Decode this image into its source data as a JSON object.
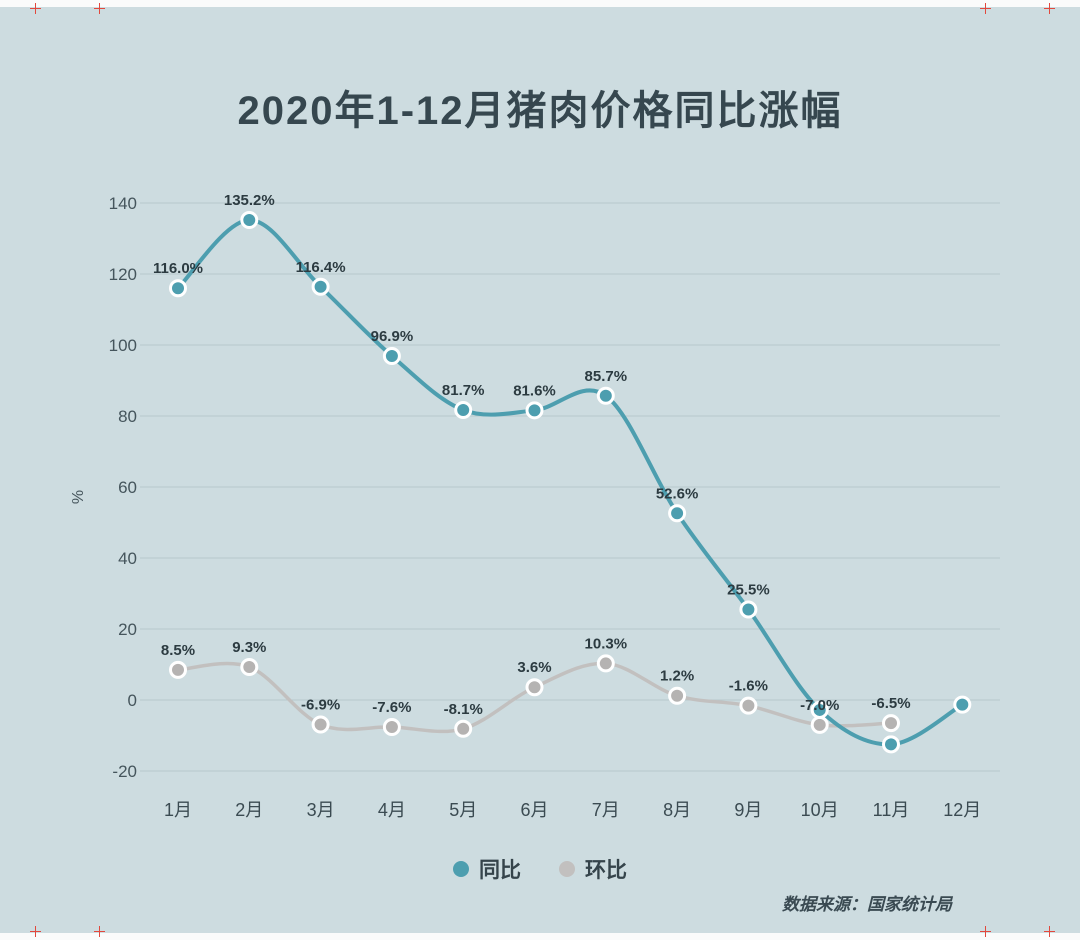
{
  "title": "2020年1-12月猪肉价格同比涨幅",
  "source": "数据来源：国家统计局",
  "legend": [
    {
      "label": "同比",
      "color": "#4d9eaf"
    },
    {
      "label": "环比",
      "color": "#c2c0bf"
    }
  ],
  "colors": {
    "background": "#cddce0",
    "grid": "#b7c8cc",
    "title_text": "#36474f",
    "value_label_text": "#2c3b41",
    "accent_teal": "#4d9eaf",
    "accent_gray": "#c2c0bf",
    "crop_mark": "#e2483d"
  },
  "chart_data": {
    "type": "line",
    "title": "2020年1-12月猪肉价格同比涨幅",
    "xlabel": "",
    "ylabel": "%",
    "ylim": [
      -20,
      140
    ],
    "ytick_interval": 20,
    "grid": true,
    "legend_position": "bottom",
    "categories": [
      "1月",
      "2月",
      "3月",
      "4月",
      "5月",
      "6月",
      "7月",
      "8月",
      "9月",
      "10月",
      "11月",
      "12月"
    ],
    "series": [
      {
        "name": "同比",
        "color": "#4d9eaf",
        "dot_color": "#4d9eaf",
        "values": [
          116.0,
          135.2,
          116.4,
          96.9,
          81.7,
          81.6,
          85.7,
          52.6,
          25.5,
          -2.8,
          -12.5,
          -1.3
        ],
        "labels": [
          "116.0%",
          "135.2%",
          "116.4%",
          "96.9%",
          "81.7%",
          "81.6%",
          "85.7%",
          "52.6%",
          "25.5%",
          null,
          null,
          null
        ]
      },
      {
        "name": "环比",
        "color": "#c2c0bf",
        "dot_color": "#b5b3b2",
        "values": [
          8.5,
          9.3,
          -6.9,
          -7.6,
          -8.1,
          3.6,
          10.3,
          1.2,
          -1.6,
          -7.0,
          -6.5,
          null
        ],
        "labels": [
          "8.5%",
          "9.3%",
          "-6.9%",
          "-7.6%",
          "-8.1%",
          "3.6%",
          "10.3%",
          "1.2%",
          "-1.6%",
          "-7.0%",
          "-6.5%",
          null
        ]
      }
    ]
  }
}
